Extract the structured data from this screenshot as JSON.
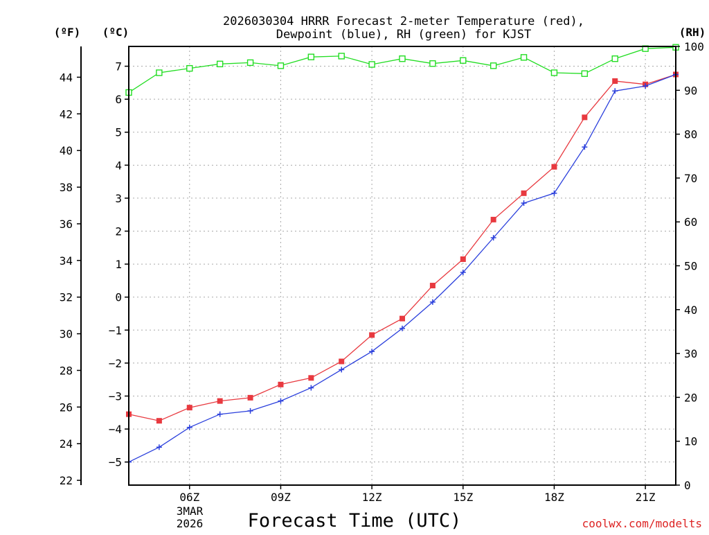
{
  "chart_data": {
    "type": "line",
    "title_line1": "2026030304 HRRR Forecast 2-meter Temperature (red),",
    "title_line2": "Dewpoint (blue), RH (green) for KJST",
    "left_units_f": "(ºF)",
    "left_units_c": "(ºC)",
    "right_units": "(RH)",
    "xlabel": "Forecast Time (UTC)",
    "date_label_line1": "3MAR",
    "date_label_line2": "2026",
    "credit": "coolwx.com/modelts",
    "x_ticks": [
      {
        "hour": 6,
        "label": "06Z"
      },
      {
        "hour": 9,
        "label": "09Z"
      },
      {
        "hour": 12,
        "label": "12Z"
      },
      {
        "hour": 15,
        "label": "15Z"
      },
      {
        "hour": 18,
        "label": "18Z"
      },
      {
        "hour": 21,
        "label": "21Z"
      }
    ],
    "x_range": [
      4,
      22
    ],
    "c_range": [
      -5.7,
      7.6
    ],
    "f_range": [
      21.74,
      45.68
    ],
    "rh_range": [
      0,
      100
    ],
    "c_ticks": [
      -5,
      -4,
      -3,
      -2,
      -1,
      0,
      1,
      2,
      3,
      4,
      5,
      6,
      7
    ],
    "c_tick_labels": [
      "−5",
      "−4",
      "−3",
      "−2",
      "−1",
      "0",
      "1",
      "2",
      "3",
      "4",
      "5",
      "6",
      "7"
    ],
    "f_ticks": [
      22,
      24,
      26,
      28,
      30,
      32,
      34,
      36,
      38,
      40,
      42,
      44
    ],
    "rh_ticks": [
      0,
      10,
      20,
      30,
      40,
      50,
      60,
      70,
      80,
      90,
      100
    ],
    "hours": [
      4,
      5,
      6,
      7,
      8,
      9,
      10,
      11,
      12,
      13,
      14,
      15,
      16,
      17,
      18,
      19,
      20,
      21,
      22
    ],
    "series": [
      {
        "name": "Temperature",
        "color": "#e8393f",
        "units": "C",
        "marker": "filled-square",
        "values": [
          -3.55,
          -3.75,
          -3.35,
          -3.15,
          -3.05,
          -2.65,
          -2.45,
          -1.95,
          -1.15,
          -0.65,
          0.35,
          1.15,
          2.35,
          3.15,
          3.95,
          5.45,
          6.55,
          6.45,
          6.75
        ]
      },
      {
        "name": "Dewpoint",
        "color": "#2a3fdc",
        "units": "C",
        "marker": "plus",
        "values": [
          -5.0,
          -4.55,
          -3.95,
          -3.55,
          -3.45,
          -3.15,
          -2.75,
          -2.2,
          -1.65,
          -0.95,
          -0.15,
          0.75,
          1.8,
          2.85,
          3.15,
          4.55,
          6.25,
          6.4,
          6.75
        ]
      },
      {
        "name": "RH",
        "color": "#22dd22",
        "units": "%",
        "marker": "open-square",
        "values": [
          89.5,
          94.0,
          95.0,
          96.0,
          96.3,
          95.6,
          97.6,
          97.8,
          95.9,
          97.2,
          96.1,
          96.8,
          95.6,
          97.5,
          94.0,
          93.8,
          97.2,
          99.5,
          99.8
        ]
      }
    ]
  }
}
